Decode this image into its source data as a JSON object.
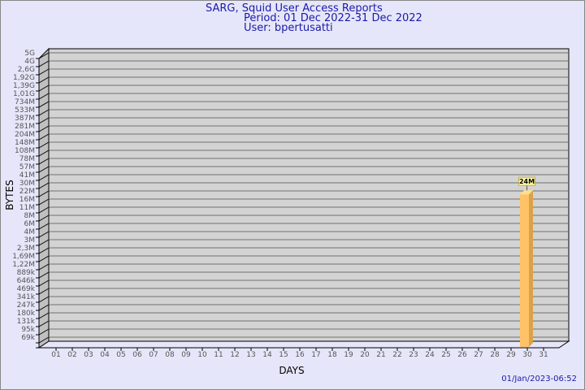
{
  "title": {
    "line1": "SARG, Squid User Access Reports",
    "line2": "Period: 01 Dec 2022-31 Dec 2022",
    "line3": "User: bpertusatti"
  },
  "timestamp": "01/Jan/2023-06:52",
  "colors": {
    "background": "#e6e6fa",
    "plot": "#d3d3d3",
    "bar": "#ffc266",
    "bar_side": "#dca24a",
    "label_box": "#fffaaa",
    "title": "#1a1aa8"
  },
  "chart_data": {
    "type": "bar",
    "xlabel": "DAYS",
    "ylabel": "BYTES",
    "yscale": "log",
    "grid": true,
    "categories": [
      "01",
      "02",
      "03",
      "04",
      "05",
      "06",
      "07",
      "08",
      "09",
      "10",
      "11",
      "12",
      "13",
      "14",
      "15",
      "16",
      "17",
      "18",
      "19",
      "20",
      "21",
      "22",
      "23",
      "24",
      "25",
      "26",
      "27",
      "28",
      "29",
      "30",
      "31"
    ],
    "y_ticks": [
      "5G",
      "4G",
      "2,6G",
      "1,92G",
      "1,39G",
      "1,01G",
      "734M",
      "533M",
      "387M",
      "281M",
      "204M",
      "148M",
      "108M",
      "78M",
      "57M",
      "41M",
      "30M",
      "22M",
      "16M",
      "11M",
      "8M",
      "6M",
      "4M",
      "3M",
      "2,3M",
      "1,69M",
      "1,22M",
      "889k",
      "646k",
      "469k",
      "341k",
      "247k",
      "180k",
      "131k",
      "95k",
      "69k"
    ],
    "bars": [
      {
        "day": "30",
        "value_label": "24M",
        "value_bytes": 24000000
      }
    ]
  }
}
